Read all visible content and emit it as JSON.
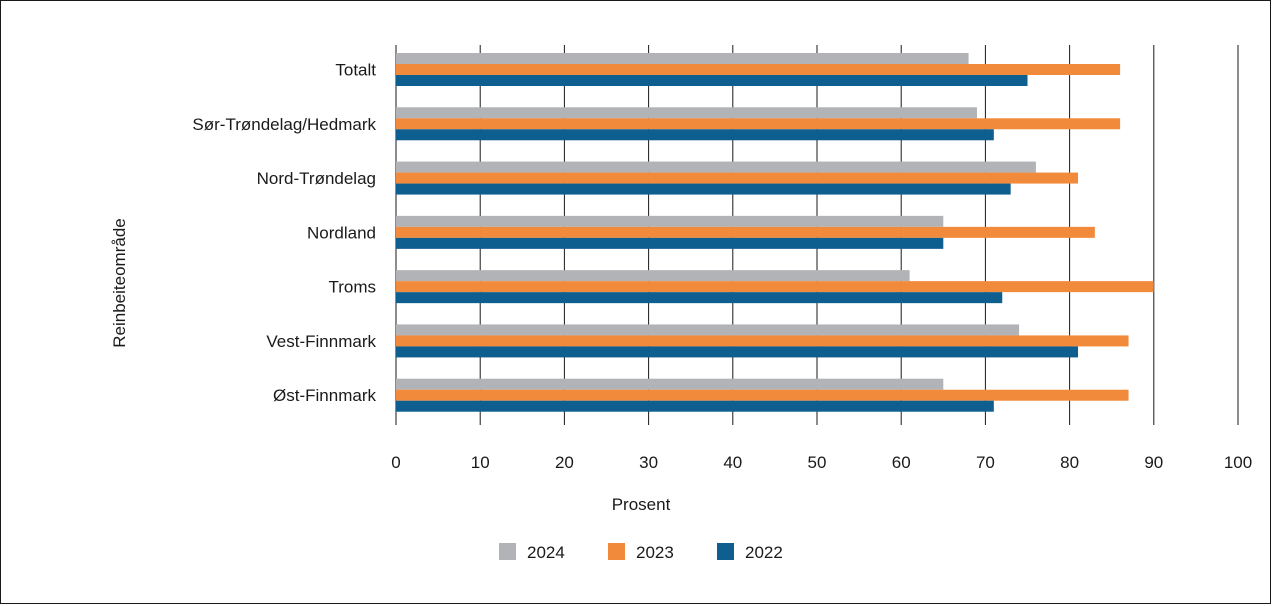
{
  "chart_data": {
    "type": "bar",
    "orientation": "horizontal",
    "categories": [
      "Totalt",
      "Sør-Trøndelag/Hedmark",
      "Nord-Trøndelag",
      "Nordland",
      "Troms",
      "Vest-Finnmark",
      "Øst-Finnmark"
    ],
    "series": [
      {
        "name": "2024",
        "color": "#b1b3b6",
        "values": [
          68,
          69,
          76,
          65,
          61,
          74,
          65
        ]
      },
      {
        "name": "2023",
        "color": "#f28a3b",
        "values": [
          86,
          86,
          81,
          83,
          90,
          87,
          87
        ]
      },
      {
        "name": "2022",
        "color": "#0e5e8f",
        "values": [
          75,
          71,
          73,
          65,
          72,
          81,
          71
        ]
      }
    ],
    "xlabel": "Prosent",
    "ylabel": "Reinbeiteområde",
    "xlim": [
      0,
      100
    ],
    "xticks": [
      "0",
      "10",
      "20",
      "30",
      "40",
      "50",
      "60",
      "70",
      "80",
      "90",
      "100"
    ],
    "grid": "vertical",
    "legend": "bottom-center"
  }
}
